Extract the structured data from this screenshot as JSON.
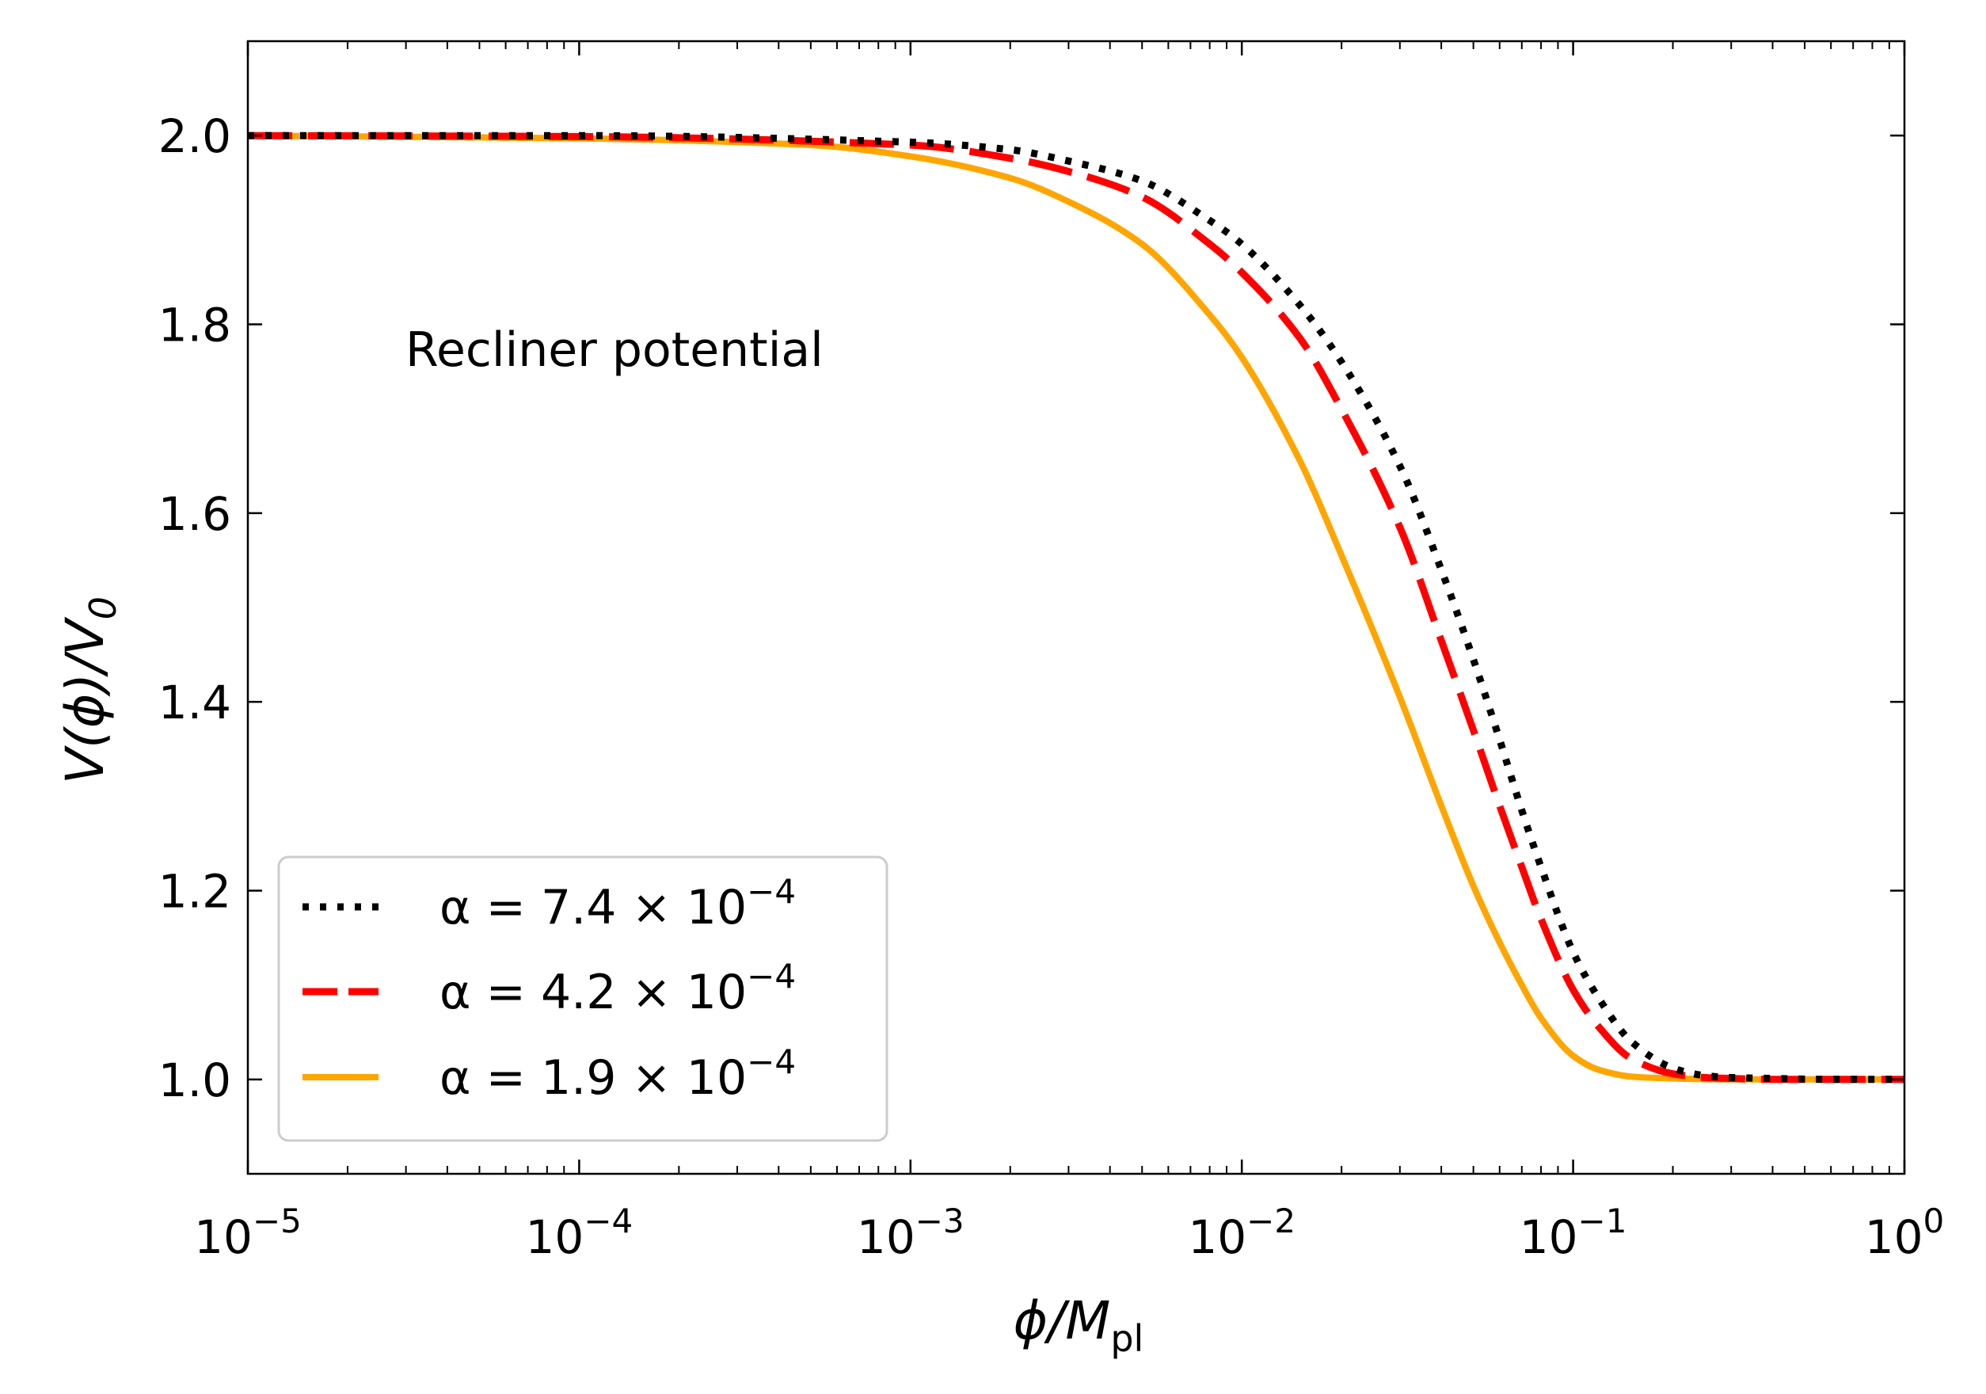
{
  "chart_data": {
    "type": "line",
    "x_scale": "log",
    "xlim": [
      1e-05,
      1
    ],
    "ylim": [
      0.9,
      2.1
    ],
    "x_ticks": [
      {
        "value": 1e-05,
        "base": "10",
        "exp": "−5"
      },
      {
        "value": 0.0001,
        "base": "10",
        "exp": "−4"
      },
      {
        "value": 0.001,
        "base": "10",
        "exp": "−3"
      },
      {
        "value": 0.01,
        "base": "10",
        "exp": "−2"
      },
      {
        "value": 0.1,
        "base": "10",
        "exp": "−1"
      },
      {
        "value": 1,
        "base": "10",
        "exp": "0"
      }
    ],
    "y_ticks": [
      {
        "value": 1.0,
        "label": "1.0"
      },
      {
        "value": 1.2,
        "label": "1.2"
      },
      {
        "value": 1.4,
        "label": "1.4"
      },
      {
        "value": 1.6,
        "label": "1.6"
      },
      {
        "value": 1.8,
        "label": "1.8"
      },
      {
        "value": 2.0,
        "label": "2.0"
      }
    ],
    "xlabel": {
      "main": "ϕ/M",
      "sub": "pl"
    },
    "ylabel": {
      "main": "V(ϕ)/V",
      "sub": "0"
    },
    "annotation": "Recliner potential",
    "legend_position": "lower-left",
    "grid": false,
    "series": [
      {
        "name": "α = 7.4 × 10⁻⁴",
        "label_main": "α = 7.4 × 10",
        "label_exp": "−4",
        "color": "#000000",
        "style": "dotted",
        "alpha": 0.00074,
        "x": [
          1e-05,
          0.0001,
          0.001,
          0.002,
          0.003,
          0.005,
          0.008,
          0.01,
          0.015,
          0.02,
          0.03,
          0.04,
          0.05,
          0.06,
          0.07,
          0.08,
          0.1,
          0.12,
          0.15,
          0.2,
          0.25,
          0.3,
          0.4,
          0.6,
          1.0
        ],
        "y": [
          2.0,
          2.0,
          1.993,
          1.985,
          1.973,
          1.952,
          1.91,
          1.885,
          1.82,
          1.76,
          1.65,
          1.54,
          1.445,
          1.36,
          1.285,
          1.225,
          1.135,
          1.085,
          1.04,
          1.012,
          1.004,
          1.002,
          1.001,
          1.0,
          1.0
        ]
      },
      {
        "name": "α = 4.2 × 10⁻⁴",
        "label_main": "α = 4.2 × 10",
        "label_exp": "−4",
        "color": "#ff0000",
        "style": "dashed",
        "alpha": 0.00042,
        "x": [
          1e-05,
          0.0001,
          0.001,
          0.002,
          0.003,
          0.005,
          0.008,
          0.01,
          0.015,
          0.02,
          0.03,
          0.04,
          0.05,
          0.06,
          0.07,
          0.08,
          0.1,
          0.12,
          0.15,
          0.2,
          0.25,
          0.3,
          0.4,
          0.6,
          1.0
        ],
        "y": [
          2.0,
          1.999,
          1.99,
          1.976,
          1.962,
          1.935,
          1.885,
          1.855,
          1.785,
          1.71,
          1.585,
          1.465,
          1.37,
          1.29,
          1.225,
          1.17,
          1.095,
          1.055,
          1.022,
          1.006,
          1.002,
          1.001,
          1.0,
          1.0,
          1.0
        ]
      },
      {
        "name": "α = 1.9 × 10⁻⁴",
        "label_main": "α = 1.9 × 10",
        "label_exp": "−4",
        "color": "#ffa500",
        "style": "solid",
        "alpha": 0.00019,
        "x": [
          1e-05,
          0.0001,
          0.0005,
          0.001,
          0.002,
          0.003,
          0.005,
          0.008,
          0.01,
          0.015,
          0.02,
          0.03,
          0.04,
          0.05,
          0.06,
          0.07,
          0.08,
          0.1,
          0.12,
          0.15,
          0.2,
          0.3,
          0.5,
          1.0
        ],
        "y": [
          2.0,
          1.997,
          1.99,
          1.978,
          1.955,
          1.93,
          1.885,
          1.81,
          1.765,
          1.655,
          1.555,
          1.405,
          1.29,
          1.205,
          1.145,
          1.1,
          1.065,
          1.025,
          1.01,
          1.003,
          1.001,
          1.0,
          1.0,
          1.0
        ]
      }
    ]
  }
}
